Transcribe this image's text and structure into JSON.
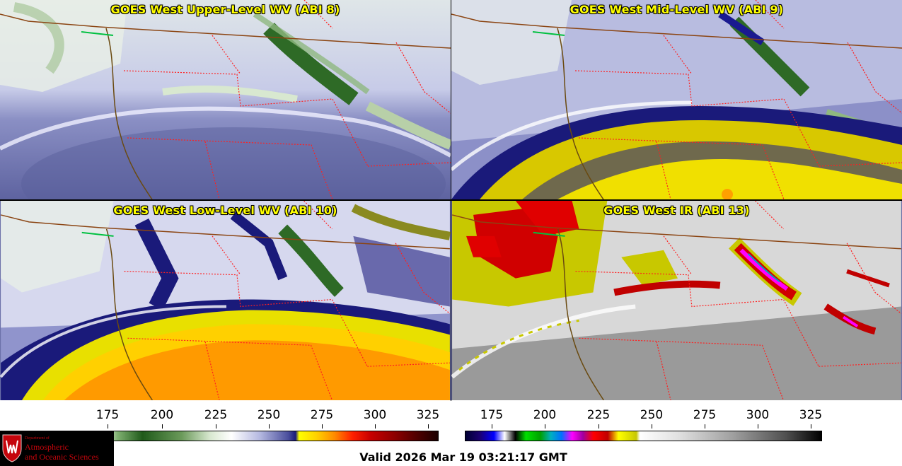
{
  "panels": [
    {
      "title": "GOES West Upper-Level WV (ABI 8)"
    },
    {
      "title": "GOES West Mid-Level WV (ABI 9)"
    },
    {
      "title": "GOES West Low-Level WV (ABI 10)"
    },
    {
      "title": "GOES West IR (ABI 13)"
    }
  ],
  "colorbars": {
    "left_ticks": [
      "175",
      "200",
      "225",
      "250",
      "275",
      "300",
      "325"
    ],
    "right_ticks": [
      "175",
      "200",
      "225",
      "250",
      "275",
      "300",
      "325"
    ]
  },
  "logo": {
    "dept": "Department of",
    "line1": "Atmospheric",
    "line2": "and Oceanic Sciences"
  },
  "valid_time": "Valid 2026 Mar 19 03:21:17 GMT",
  "colors": {
    "title_text": "#ffff00",
    "state_border": "#ff2020",
    "coastline": "#8b4513",
    "upper_wv_base": "#6b70a8",
    "mid_wv_yellow": "#e8d800",
    "low_wv_orange": "#ff9a00",
    "ir_gray": "#9a9a9a",
    "logo_red": "#c5050c"
  }
}
